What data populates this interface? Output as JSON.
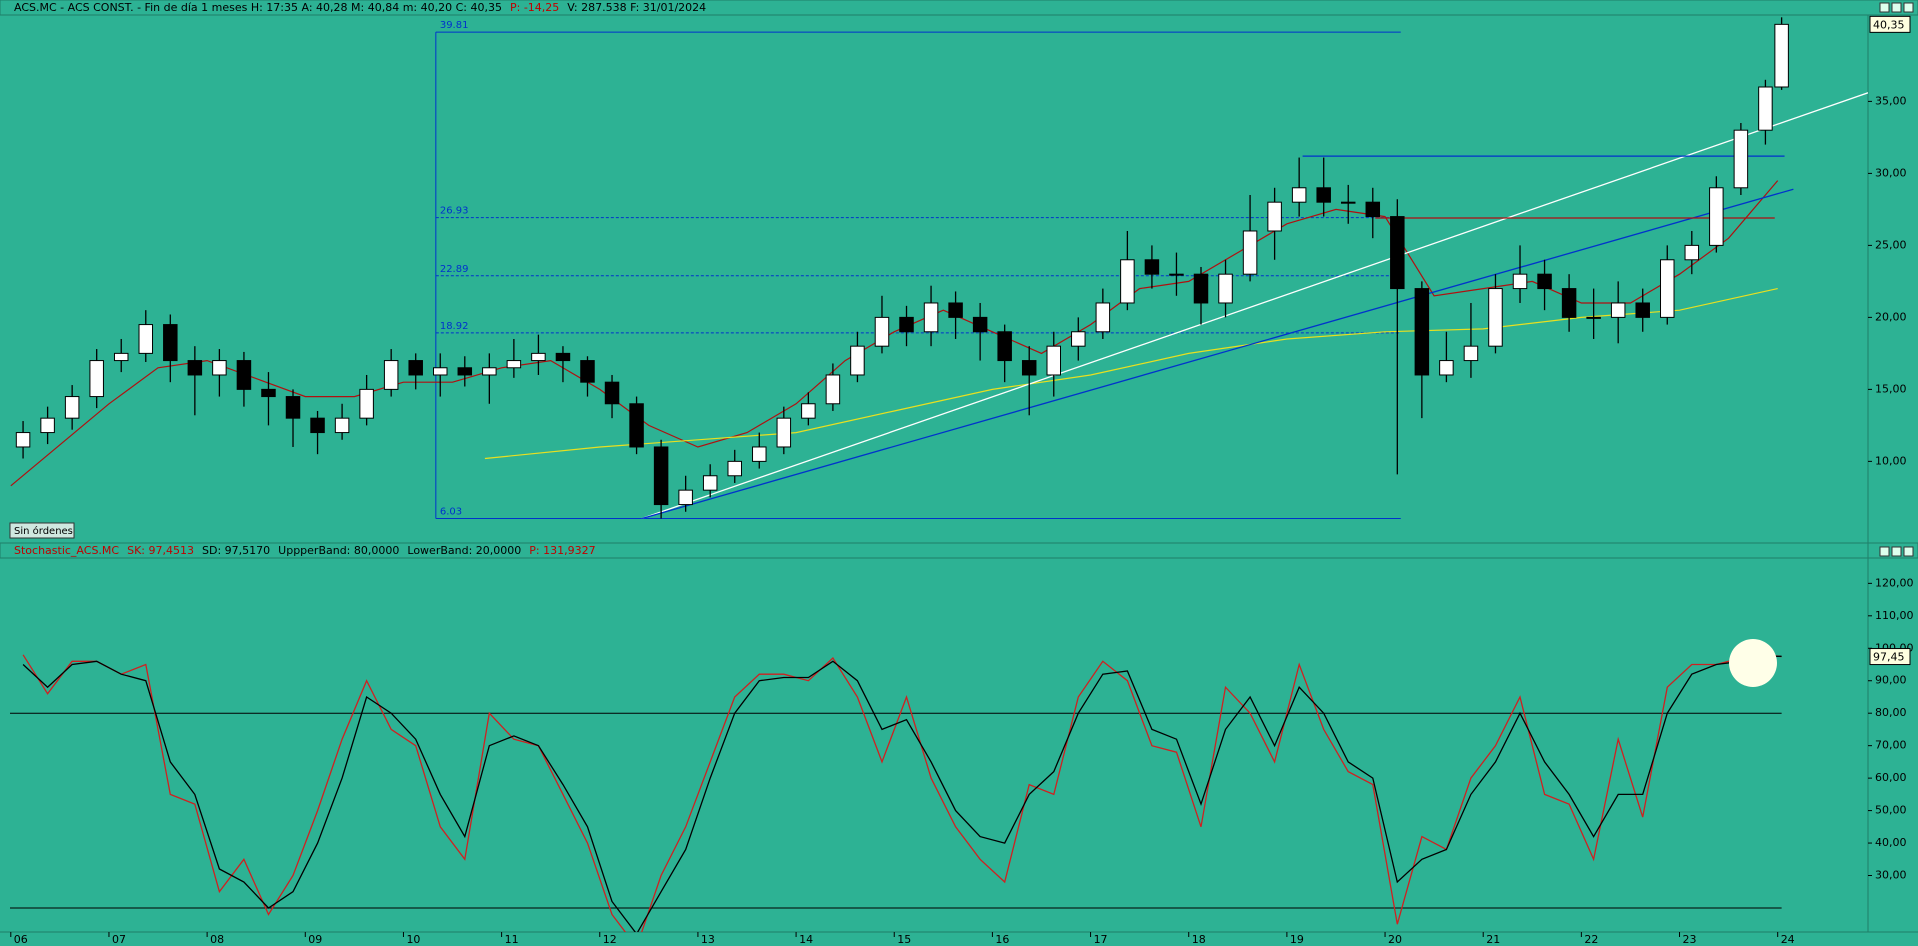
{
  "header": {
    "parts": [
      {
        "text": "ACS.MC - ACS CONST. - Fin de día 1 meses  H: 17:35  A: 40,28  M: 40,84  m: 40,20  C: 40,35",
        "color": "#000000"
      },
      {
        "text": "P: -14,25",
        "color": "#c00000"
      },
      {
        "text": "V: 287.538  F: 31/01/2024",
        "color": "#000000"
      }
    ]
  },
  "button": "Sin órdenes",
  "chart_data": [
    {
      "type": "candlestick",
      "x": [
        2006.125,
        2006.375,
        2006.625,
        2006.875,
        2007.125,
        2007.375,
        2007.625,
        2007.875,
        2008.125,
        2008.375,
        2008.625,
        2008.875,
        2009.125,
        2009.375,
        2009.625,
        2009.875,
        2010.125,
        2010.375,
        2010.625,
        2010.875,
        2011.125,
        2011.375,
        2011.625,
        2011.875,
        2012.125,
        2012.375,
        2012.625,
        2012.875,
        2013.125,
        2013.375,
        2013.625,
        2013.875,
        2014.125,
        2014.375,
        2014.625,
        2014.875,
        2015.125,
        2015.375,
        2015.625,
        2015.875,
        2016.125,
        2016.375,
        2016.625,
        2016.875,
        2017.125,
        2017.375,
        2017.625,
        2017.875,
        2018.125,
        2018.375,
        2018.625,
        2018.875,
        2019.125,
        2019.375,
        2019.625,
        2019.875,
        2020.125,
        2020.375,
        2020.625,
        2020.875,
        2021.125,
        2021.375,
        2021.625,
        2021.875,
        2022.125,
        2022.375,
        2022.625,
        2022.875,
        2023.125,
        2023.375,
        2023.625,
        2023.875,
        2024.04
      ],
      "open": [
        11,
        12,
        13,
        14.5,
        17,
        17.5,
        19.5,
        17,
        16,
        17,
        15,
        14.5,
        13,
        12,
        13,
        15,
        17,
        16,
        16.5,
        16,
        16.5,
        17,
        17.5,
        17,
        15.5,
        14,
        11,
        7,
        8,
        9,
        10,
        11,
        13,
        14,
        16,
        18,
        20,
        19,
        21,
        20,
        19,
        17,
        16,
        18,
        19,
        21,
        24,
        23,
        23,
        21,
        23,
        26,
        28,
        29,
        28,
        28,
        27,
        22,
        16,
        17,
        18,
        22,
        23,
        22,
        20,
        20,
        21,
        20,
        24,
        25,
        29,
        33,
        36
      ],
      "high": [
        12.8,
        13.8,
        15.3,
        17.8,
        18.5,
        20.5,
        20.2,
        18,
        17.8,
        17.6,
        16.2,
        15,
        13.5,
        14,
        16,
        17.8,
        17.5,
        17.5,
        17.3,
        17.5,
        18.5,
        18.8,
        18,
        17.3,
        16,
        14.5,
        11.5,
        9,
        9.8,
        10.8,
        12,
        13.8,
        14.8,
        16.8,
        19,
        21.5,
        20.8,
        22.2,
        21.8,
        21,
        19.5,
        18,
        19,
        20,
        22,
        26,
        25,
        24.5,
        23.5,
        24,
        28.5,
        29,
        31.1,
        31.1,
        29.2,
        29,
        28.2,
        22.5,
        19,
        21,
        23,
        25,
        24,
        23,
        22,
        22.5,
        22,
        25,
        26,
        29.8,
        33.5,
        36.5,
        40.84
      ],
      "low": [
        10.2,
        11.2,
        12.2,
        13.7,
        16.2,
        16.9,
        15.5,
        13.2,
        14.5,
        13.8,
        12.5,
        11,
        10.5,
        11.5,
        12.5,
        14.5,
        15,
        14.5,
        15.2,
        14,
        15.8,
        16,
        15.5,
        14.5,
        13,
        10.5,
        6.03,
        6.5,
        7.5,
        8.5,
        9.5,
        10.5,
        12.5,
        13.5,
        15.5,
        17.5,
        18,
        18,
        18.5,
        17,
        15.5,
        13.2,
        14.5,
        17,
        18.5,
        20.5,
        22,
        21.5,
        19.5,
        20,
        22.5,
        24,
        27,
        27,
        26.5,
        25.5,
        9.1,
        13,
        15.5,
        15.8,
        17.5,
        21,
        20.5,
        19,
        18.5,
        18.2,
        19,
        19.5,
        23,
        24.5,
        28.5,
        32,
        35.8
      ],
      "close": [
        12,
        13,
        14.5,
        17,
        17.5,
        19.5,
        17,
        16,
        17,
        15,
        14.5,
        13,
        12,
        13,
        15,
        17,
        16,
        16.5,
        16,
        16.5,
        17,
        17.5,
        17,
        15.5,
        14,
        11,
        7,
        8,
        9,
        10,
        11,
        13,
        14,
        16,
        18,
        20,
        19,
        21,
        20,
        19,
        17,
        16,
        18,
        19,
        21,
        24,
        23,
        23,
        21,
        23,
        26,
        28,
        29,
        28,
        28,
        27,
        22,
        16,
        17,
        18,
        22,
        23,
        22,
        20,
        20,
        21,
        20,
        24,
        25,
        29,
        33,
        36,
        40.35
      ],
      "up_color": "#ffffff",
      "down_color": "#000000",
      "xlim": [
        2005.89,
        2024.92
      ],
      "ylim": [
        4.4,
        41.0
      ],
      "yticks": [
        {
          "value": 10,
          "label": "10,00"
        },
        {
          "value": 15,
          "label": "15,00"
        },
        {
          "value": 20,
          "label": "20,00"
        },
        {
          "value": 25,
          "label": "25,00"
        },
        {
          "value": 30,
          "label": "30,00"
        },
        {
          "value": 35,
          "label": "35,00"
        }
      ],
      "last_price": {
        "value": 40.35,
        "label": "40,35"
      },
      "overlays": [
        {
          "color": "#b01010",
          "x": [
            2006,
            2007,
            2007.5,
            2008,
            2009,
            2009.5,
            2010,
            2010.5,
            2011,
            2011.5,
            2012,
            2012.5,
            2013,
            2013.5,
            2014,
            2014.5,
            2015,
            2015.5,
            2016,
            2016.5,
            2017,
            2017.5,
            2018,
            2018.5,
            2019,
            2019.5,
            2020,
            2020.5,
            2021,
            2021.5,
            2022,
            2022.5,
            2023,
            2023.5,
            2024
          ],
          "values": [
            8.3,
            14,
            16.5,
            17,
            14.5,
            14.5,
            15.5,
            15.5,
            16.5,
            17,
            15,
            12.5,
            11,
            12,
            14,
            17,
            19,
            20.5,
            19,
            17.5,
            19.5,
            22,
            22.5,
            24.5,
            26.5,
            27.5,
            27,
            21.5,
            22,
            22.5,
            21,
            21,
            23,
            25.5,
            29.5
          ]
        },
        {
          "color": "#e8e020",
          "x": [
            2010.83,
            2012,
            2013,
            2014,
            2015,
            2016,
            2017,
            2018,
            2019,
            2020,
            2021,
            2022,
            2023,
            2024
          ],
          "values": [
            10.2,
            11,
            11.5,
            12,
            13.5,
            15,
            16,
            17.5,
            18.5,
            19,
            19.2,
            20,
            20.5,
            22
          ]
        }
      ],
      "fib_x": [
        2010.33,
        2020.16
      ],
      "fib_levels": [
        39.81,
        26.93,
        22.89,
        18.92,
        6.03
      ],
      "trendlines": [
        {
          "color": "#ffffff",
          "x": [
            2012.43,
            2024.92
          ],
          "values": [
            6.03,
            35.6
          ]
        },
        {
          "color": "#0033cc",
          "x": [
            2012.43,
            2024.16
          ],
          "values": [
            6.03,
            28.9
          ]
        },
        {
          "color": "#0033cc",
          "x": [
            2019.16,
            2024.07
          ],
          "values": [
            31.2,
            31.2
          ]
        },
        {
          "color": "#b01010",
          "x": [
            2019.9,
            2023.97
          ],
          "values": [
            26.9,
            26.9
          ]
        }
      ]
    },
    {
      "type": "line",
      "title_parts": [
        {
          "text": "Stochastic_ACS.MC",
          "color": "#c00000"
        },
        {
          "text": "SK: 97,4513",
          "color": "#c00000"
        },
        {
          "text": "SD: 97,5170",
          "color": "#000000"
        },
        {
          "text": "UppperBand: 80,0000",
          "color": "#000000"
        },
        {
          "text": "LowerBand: 20,0000",
          "color": "#000000"
        },
        {
          "text": "P: 131,9327",
          "color": "#c00000"
        }
      ],
      "x": [
        2006.125,
        2006.375,
        2006.625,
        2006.875,
        2007.125,
        2007.375,
        2007.625,
        2007.875,
        2008.125,
        2008.375,
        2008.625,
        2008.875,
        2009.125,
        2009.375,
        2009.625,
        2009.875,
        2010.125,
        2010.375,
        2010.625,
        2010.875,
        2011.125,
        2011.375,
        2011.625,
        2011.875,
        2012.125,
        2012.375,
        2012.625,
        2012.875,
        2013.125,
        2013.375,
        2013.625,
        2013.875,
        2014.125,
        2014.375,
        2014.625,
        2014.875,
        2015.125,
        2015.375,
        2015.625,
        2015.875,
        2016.125,
        2016.375,
        2016.625,
        2016.875,
        2017.125,
        2017.375,
        2017.625,
        2017.875,
        2018.125,
        2018.375,
        2018.625,
        2018.875,
        2019.125,
        2019.375,
        2019.625,
        2019.875,
        2020.125,
        2020.375,
        2020.625,
        2020.875,
        2021.125,
        2021.375,
        2021.625,
        2021.875,
        2022.125,
        2022.375,
        2022.625,
        2022.875,
        2023.125,
        2023.375,
        2023.625,
        2023.875,
        2024.04
      ],
      "series": [
        {
          "color": "#d02020",
          "values": [
            98,
            86,
            96,
            96,
            92,
            95,
            55,
            52,
            25,
            35,
            18,
            30,
            50,
            72,
            90,
            75,
            70,
            45,
            35,
            80,
            72,
            70,
            55,
            40,
            18,
            8,
            30,
            45,
            65,
            85,
            92,
            92,
            90,
            97,
            85,
            65,
            85,
            60,
            45,
            35,
            28,
            58,
            55,
            85,
            96,
            90,
            70,
            68,
            45,
            88,
            80,
            65,
            95,
            75,
            62,
            58,
            15,
            42,
            38,
            60,
            70,
            85,
            55,
            52,
            35,
            72,
            48,
            88,
            95,
            95,
            97,
            98,
            97.45
          ]
        },
        {
          "color": "#000000",
          "values": [
            95,
            88,
            95,
            96,
            92,
            90,
            65,
            55,
            32,
            28,
            20,
            25,
            40,
            60,
            85,
            80,
            72,
            55,
            42,
            70,
            73,
            70,
            58,
            45,
            22,
            12,
            25,
            38,
            60,
            80,
            90,
            91,
            91,
            96,
            90,
            75,
            78,
            65,
            50,
            42,
            40,
            55,
            62,
            80,
            92,
            93,
            75,
            72,
            52,
            75,
            85,
            70,
            88,
            80,
            65,
            60,
            28,
            35,
            38,
            55,
            65,
            80,
            65,
            55,
            42,
            55,
            55,
            80,
            92,
            95,
            96,
            97.5,
            97.52
          ]
        }
      ],
      "bands": [
        80,
        20
      ],
      "xlim": [
        2005.89,
        2024.92
      ],
      "ylim": [
        12.6,
        127.5
      ],
      "yticks": [
        {
          "value": 30,
          "label": "30,00"
        },
        {
          "value": 40,
          "label": "40,00"
        },
        {
          "value": 50,
          "label": "50,00"
        },
        {
          "value": 60,
          "label": "60,00"
        },
        {
          "value": 70,
          "label": "70,00"
        },
        {
          "value": 80,
          "label": "80,00"
        },
        {
          "value": 90,
          "label": "90,00"
        },
        {
          "value": 100,
          "label": "100,00"
        },
        {
          "value": 110,
          "label": "110,00"
        },
        {
          "value": 120,
          "label": "120,00"
        }
      ],
      "last_value": {
        "value": 97.45,
        "label": "97,45"
      },
      "xticks": [
        {
          "value": 2006,
          "label": "06"
        },
        {
          "value": 2007,
          "label": "07"
        },
        {
          "value": 2008,
          "label": "08"
        },
        {
          "value": 2009,
          "label": "09"
        },
        {
          "value": 2010,
          "label": "10"
        },
        {
          "value": 2011,
          "label": "11"
        },
        {
          "value": 2012,
          "label": "12"
        },
        {
          "value": 2013,
          "label": "13"
        },
        {
          "value": 2014,
          "label": "14"
        },
        {
          "value": 2015,
          "label": "15"
        },
        {
          "value": 2016,
          "label": "16"
        },
        {
          "value": 2017,
          "label": "17"
        },
        {
          "value": 2018,
          "label": "18"
        },
        {
          "value": 2019,
          "label": "19"
        },
        {
          "value": 2020,
          "label": "20"
        },
        {
          "value": 2021,
          "label": "21"
        },
        {
          "value": 2022,
          "label": "22"
        },
        {
          "value": 2023,
          "label": "23"
        },
        {
          "value": 2024,
          "label": "24"
        }
      ]
    }
  ]
}
